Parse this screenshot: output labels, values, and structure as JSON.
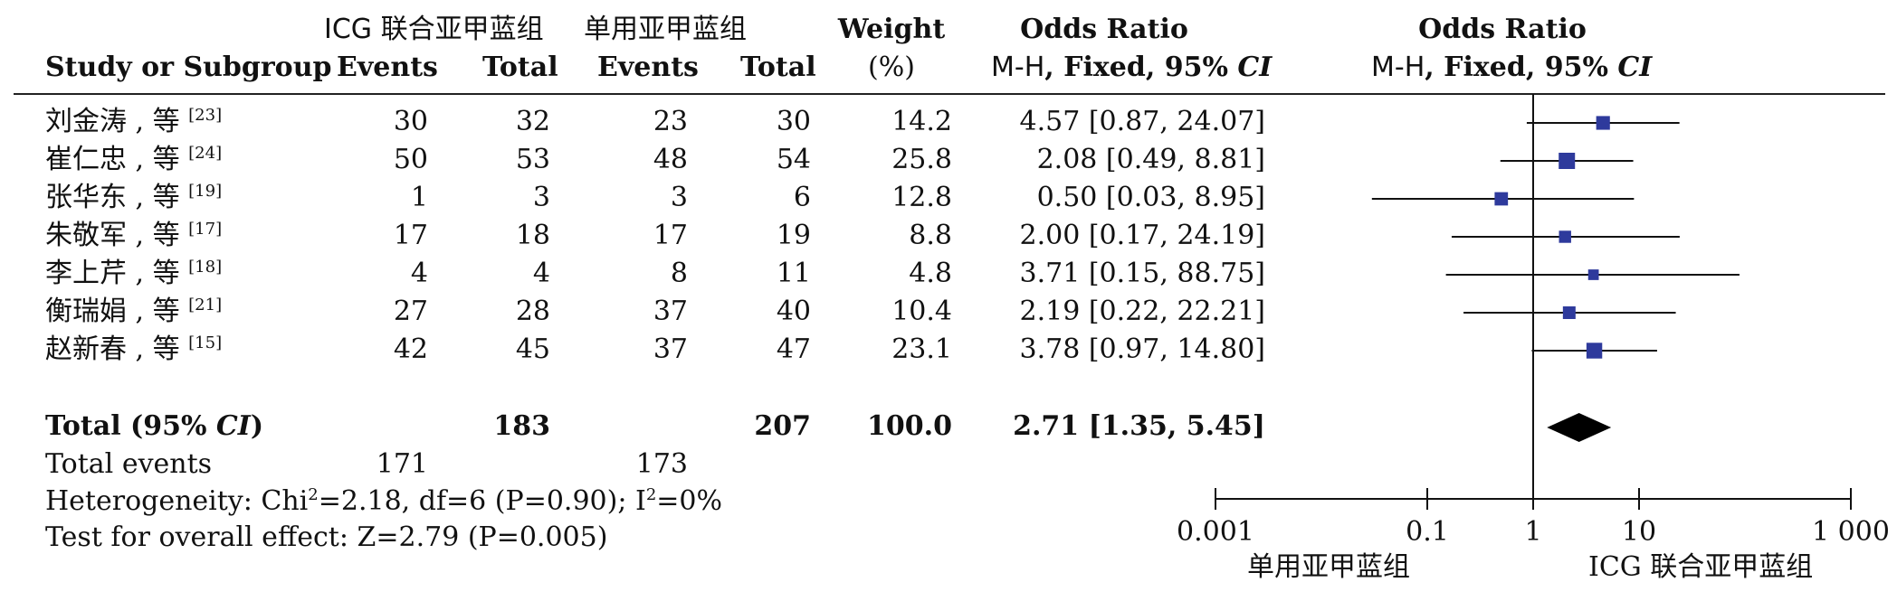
{
  "header": {
    "study": "Study or Subgroup",
    "group1": "ICG 联合亚甲蓝组",
    "group2": "单用亚甲蓝组",
    "events": "Events",
    "total": "Total",
    "weight": "Weight",
    "weight_unit": "(%)",
    "or_title": "Odds Ratio",
    "or_method_prefix": "M-H",
    "or_method": ", Fixed, 95% ",
    "ci": "CI",
    "plot_title": "Odds Ratio"
  },
  "studies": [
    {
      "name": "刘金涛 , 等",
      "ref": "[23]",
      "e1": "30",
      "t1": "32",
      "e2": "23",
      "t2": "30",
      "weight": "14.2",
      "or_text": "4.57 [0.87, 24.07]"
    },
    {
      "name": "崔仁忠 , 等",
      "ref": "[24]",
      "e1": "50",
      "t1": "53",
      "e2": "48",
      "t2": "54",
      "weight": "25.8",
      "or_text": "2.08 [0.49, 8.81]"
    },
    {
      "name": "张华东 , 等",
      "ref": "[19]",
      "e1": "1",
      "t1": "3",
      "e2": "3",
      "t2": "6",
      "weight": "12.8",
      "or_text": "0.50 [0.03, 8.95]"
    },
    {
      "name": "朱敬军 , 等",
      "ref": "[17]",
      "e1": "17",
      "t1": "18",
      "e2": "17",
      "t2": "19",
      "weight": "8.8",
      "or_text": "2.00 [0.17, 24.19]"
    },
    {
      "name": "李上芹 , 等",
      "ref": "[18]",
      "e1": "4",
      "t1": "4",
      "e2": "8",
      "t2": "11",
      "weight": "4.8",
      "or_text": "3.71 [0.15, 88.75]"
    },
    {
      "name": "衡瑞娟 , 等",
      "ref": "[21]",
      "e1": "27",
      "t1": "28",
      "e2": "37",
      "t2": "40",
      "weight": "10.4",
      "or_text": "2.19 [0.22, 22.21]"
    },
    {
      "name": "赵新春 , 等",
      "ref": "[15]",
      "e1": "42",
      "t1": "45",
      "e2": "37",
      "t2": "47",
      "weight": "23.1",
      "or_text": "3.78 [0.97, 14.80]"
    }
  ],
  "total": {
    "label_a": "Total (95% ",
    "label_ci": "CI",
    "label_b": ")",
    "t1": "183",
    "t2": "207",
    "weight": "100.0",
    "or_text": "2.71 [1.35, 5.45]"
  },
  "total_events": {
    "label": "Total events",
    "e1": "171",
    "e2": "173"
  },
  "heterogeneity": {
    "prefix": "Heterogeneity: Chi",
    "sup": "2",
    "mid": "=2.18, df=6 (P=0.90); I",
    "sup2": "2",
    "suffix": "=0%"
  },
  "overall_effect": "Test for overall effect: Z=2.79 (P=0.005)",
  "chart_data": {
    "type": "scatter",
    "subtype": "forest",
    "x_scale": "log",
    "xlim": [
      0.001,
      1000
    ],
    "x_ticks": [
      0.001,
      0.1,
      1,
      10,
      1000
    ],
    "x_tick_labels": [
      "0.001",
      "0.1",
      "1",
      "10",
      "1 000"
    ],
    "xlabel_left": "单用亚甲蓝组",
    "xlabel_right": "ICG 联合亚甲蓝组",
    "reference_line": 1,
    "marker_color": "#2e3a9c",
    "points": [
      {
        "or": 4.57,
        "lo": 0.87,
        "hi": 24.07,
        "weight": 14.2
      },
      {
        "or": 2.08,
        "lo": 0.49,
        "hi": 8.81,
        "weight": 25.8
      },
      {
        "or": 0.5,
        "lo": 0.03,
        "hi": 8.95,
        "weight": 12.8
      },
      {
        "or": 2.0,
        "lo": 0.17,
        "hi": 24.19,
        "weight": 8.8
      },
      {
        "or": 3.71,
        "lo": 0.15,
        "hi": 88.75,
        "weight": 4.8
      },
      {
        "or": 2.19,
        "lo": 0.22,
        "hi": 22.21,
        "weight": 10.4
      },
      {
        "or": 3.78,
        "lo": 0.97,
        "hi": 14.8,
        "weight": 23.1
      }
    ],
    "pooled": {
      "or": 2.71,
      "lo": 1.35,
      "hi": 5.45
    }
  }
}
